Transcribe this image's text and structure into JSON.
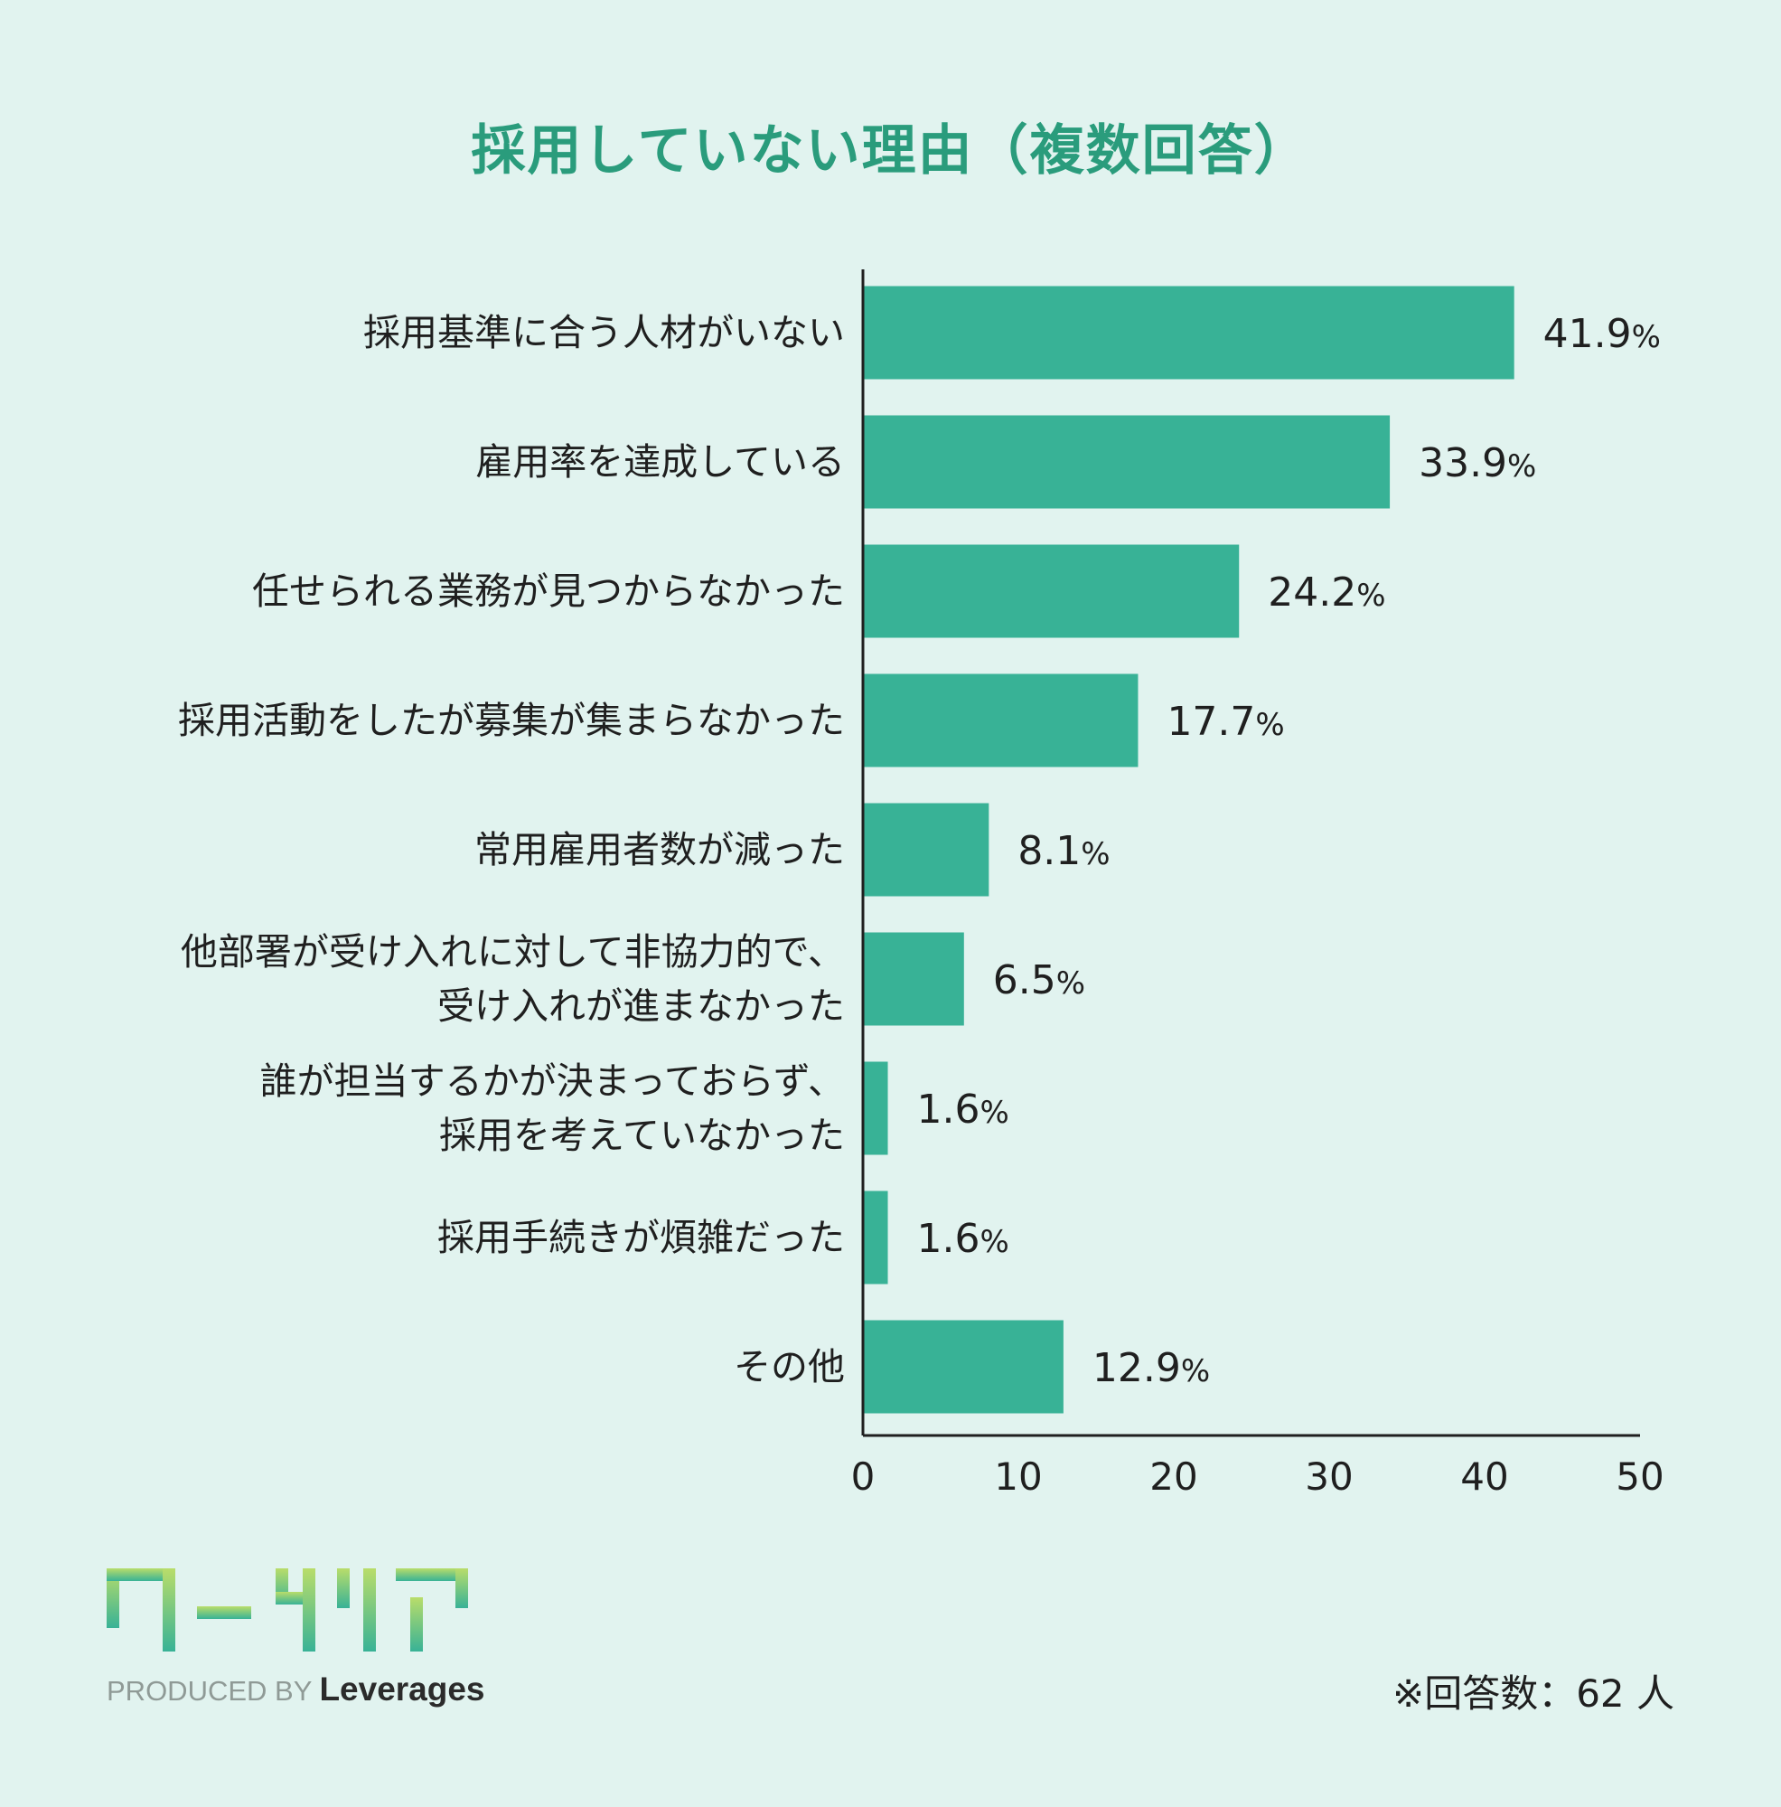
{
  "title": "採用していない理由（複数回答）",
  "chart_data": {
    "type": "bar",
    "orientation": "horizontal",
    "categories": [
      [
        "採用基準に合う人材がいない"
      ],
      [
        "雇用率を達成している"
      ],
      [
        "任せられる業務が見つからなかった"
      ],
      [
        "採用活動をしたが募集が集まらなかった"
      ],
      [
        "常用雇用者数が減った"
      ],
      [
        "他部署が受け入れに対して非協力的で、",
        "受け入れが進まなかった"
      ],
      [
        "誰が担当するかが決まっておらず、",
        "採用を考えていなかった"
      ],
      [
        "採用手続きが煩雑だった"
      ],
      [
        "その他"
      ]
    ],
    "values": [
      41.9,
      33.9,
      24.2,
      17.7,
      8.1,
      6.5,
      1.6,
      1.6,
      12.9
    ],
    "value_labels": [
      "41.9",
      "33.9",
      "24.2",
      "17.7",
      "8.1",
      "6.5",
      "1.6",
      "1.6",
      "12.9"
    ],
    "value_unit": "%",
    "xlim": [
      0,
      50
    ],
    "xticks": [
      "0",
      "10",
      "20",
      "30",
      "40",
      "50"
    ],
    "grid": false,
    "bar_color": "#38b296"
  },
  "note": "※回答数：62 人",
  "logo": {
    "produced_by": "PRODUCED BY",
    "brand": "Leverages",
    "logo_text": "ワークリア",
    "colors": {
      "start": "#b9dd6a",
      "end": "#38b296"
    }
  }
}
